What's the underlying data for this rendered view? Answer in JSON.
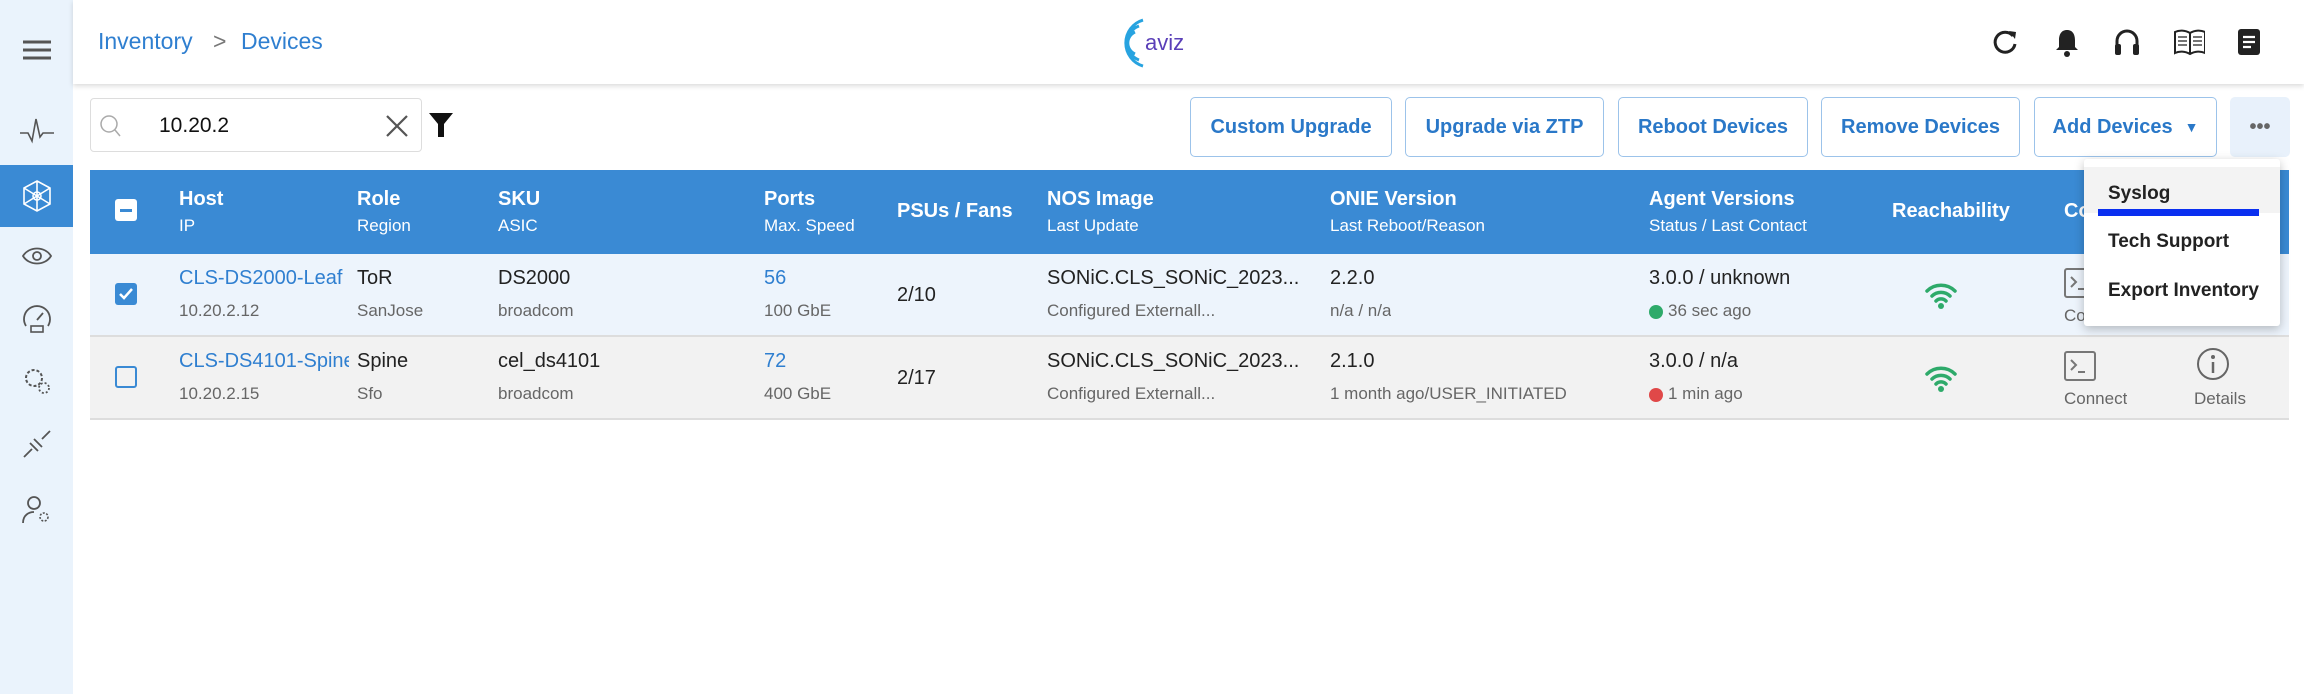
{
  "header": {
    "breadcrumb": [
      "Inventory",
      "Devices"
    ],
    "logo_text": "aviz"
  },
  "search": {
    "value": "10.20.2",
    "placeholder": ""
  },
  "toolbar": {
    "buttons": [
      "Custom Upgrade",
      "Upgrade via ZTP",
      "Reboot Devices",
      "Remove Devices",
      "Add Devices"
    ],
    "more": "•••"
  },
  "table": {
    "columns": [
      {
        "main": "Host",
        "sub": "IP"
      },
      {
        "main": "Role",
        "sub": "Region"
      },
      {
        "main": "SKU",
        "sub": "ASIC"
      },
      {
        "main": "Ports",
        "sub": "Max. Speed"
      },
      {
        "main": "PSUs / Fans",
        "sub": ""
      },
      {
        "main": "NOS Image",
        "sub": "Last Update"
      },
      {
        "main": "ONIE Version",
        "sub": "Last Reboot/Reason"
      },
      {
        "main": "Agent Versions",
        "sub": "Status / Last Contact"
      },
      {
        "main": "Reachability",
        "sub": ""
      },
      {
        "main": "Connect",
        "sub": ""
      }
    ],
    "rows": [
      {
        "checked": true,
        "host": "CLS-DS2000-Leaf",
        "ip": "10.20.2.12",
        "role": "ToR",
        "region": "SanJose",
        "sku": "DS2000",
        "asic": "broadcom",
        "ports": "56",
        "speed": "100 GbE",
        "psus_fans": "2/10",
        "nos": "SONiC.CLS_SONiC_2023...",
        "last_update": "Configured Externall...",
        "onie": "2.2.0",
        "reboot": "n/a / n/a",
        "agent": "3.0.0 / unknown",
        "status_color": "#2eaa6a",
        "contact": "36 sec ago",
        "connect": "Connect",
        "details": ""
      },
      {
        "checked": false,
        "host": "CLS-DS4101-Spine",
        "ip": "10.20.2.15",
        "role": "Spine",
        "region": "Sfo",
        "sku": "cel_ds4101",
        "asic": "broadcom",
        "ports": "72",
        "speed": "400 GbE",
        "psus_fans": "2/17",
        "nos": "SONiC.CLS_SONiC_2023...",
        "last_update": "Configured Externall...",
        "onie": "2.1.0",
        "reboot": "1 month ago/USER_INITIATED",
        "agent": "3.0.0 / n/a",
        "status_color": "#e04848",
        "contact": "1 min ago",
        "connect": "Connect",
        "details": "Details"
      }
    ]
  },
  "menu": {
    "items": [
      "Syslog",
      "Tech Support",
      "Export Inventory"
    ]
  },
  "colors": {
    "accent": "#3a8ad4",
    "link": "#2f7fd0",
    "reachable": "#2eaa6a",
    "menu_highlight": "#0a2ff0"
  }
}
